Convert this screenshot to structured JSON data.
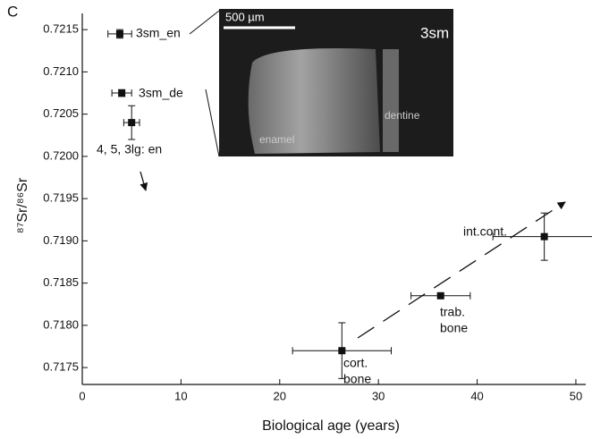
{
  "chart_data": {
    "type": "scatter",
    "panel_label": "C",
    "x_label": "Biological age (years)",
    "y_label": "⁸⁷Sr/⁸⁶Sr",
    "xlim": [
      0,
      51
    ],
    "ylim": [
      0.7173,
      0.72165
    ],
    "xticks": [
      0,
      10,
      20,
      30,
      40,
      50
    ],
    "yticks": [
      {
        "value": 0.7175,
        "label": "0.7175"
      },
      {
        "value": 0.718,
        "label": "0.7180"
      },
      {
        "value": 0.7185,
        "label": "0.7185"
      },
      {
        "value": 0.719,
        "label": "0.7190"
      },
      {
        "value": 0.7195,
        "label": "0.7195"
      },
      {
        "value": 0.72,
        "label": "0.7200"
      },
      {
        "value": 0.7205,
        "label": "0.7205"
      },
      {
        "value": 0.721,
        "label": "0.7210"
      },
      {
        "value": 0.7215,
        "label": "0.7215"
      }
    ],
    "color": "#111111",
    "x": [
      3.8,
      4.0,
      5.0,
      46.8,
      36.3,
      26.3
    ],
    "values": [
      0.72145,
      0.72075,
      0.7204,
      0.71905,
      0.71835,
      0.7177
    ],
    "x_err": [
      1.2,
      1.0,
      0.8,
      5.2,
      3.0,
      5.0
    ],
    "y_err": [
      5e-05,
      4e-05,
      0.0002,
      0.00028,
      2e-05,
      0.00033
    ],
    "point_labels": [
      [
        "3sm_en"
      ],
      [
        "3sm_de"
      ],
      [
        "4, 5, 3lg: en"
      ],
      [
        "int.cont."
      ],
      [
        "trab.",
        "bone"
      ],
      [
        "cort.",
        "bone"
      ]
    ],
    "inset": {
      "scale_label": "500 µm",
      "label": "3sm",
      "annotations": [
        "enamel",
        "dentine"
      ]
    }
  }
}
